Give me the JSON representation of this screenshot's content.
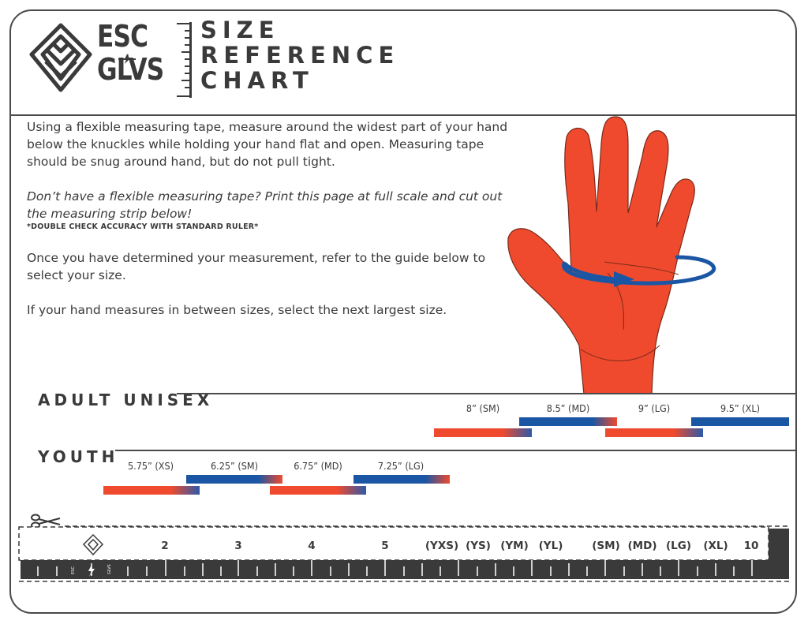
{
  "brand": {
    "line1": "ESC",
    "line2": "GLVS",
    "mini_line1": "ESC",
    "mini_line2": "GLVS"
  },
  "title": {
    "line1": "SIZE",
    "line2": "REFERENCE",
    "line3": "CHART"
  },
  "instructions": {
    "p1": "Using a flexible measuring tape, measure around the widest part of your hand below the knuckles while holding your hand flat and open. Measuring tape should be snug around hand, but do not pull tight.",
    "p2_italic": "Don’t have a flexible measuring tape? Print this page at full scale and cut out the measuring strip below!",
    "p2_note": "*DOUBLE CHECK ACCURACY WITH STANDARD RULER*",
    "p3": "Once you have determined your measurement, refer to the guide below to select your size.",
    "p4": "If your hand measures in between sizes, select the next largest size."
  },
  "colors": {
    "red": "#ef4a2e",
    "blue": "#1b56a4",
    "dark": "#3a3a3a"
  },
  "adult": {
    "title": "ADULT UNISEX",
    "sizes": [
      "8” (SM)",
      "8.5” (MD)",
      "9” (LG)",
      "9.5” (XL)"
    ]
  },
  "youth": {
    "title": "YOUTH",
    "sizes": [
      "5.75” (XS)",
      "6.25” (SM)",
      "6.75” (MD)",
      "7.25” (LG)"
    ]
  },
  "ruler": {
    "labels": [
      "2",
      "3",
      "4",
      "5",
      "(YXS)",
      "(YS)",
      "(YM)",
      "(YL)",
      "(SM)",
      "(MD)",
      "(LG)",
      "(XL)",
      "10"
    ]
  },
  "icons": [
    "esc-glvs-logo-icon",
    "ruler-icon",
    "hand-illustration",
    "scissors-icon",
    "bolt-icon"
  ]
}
